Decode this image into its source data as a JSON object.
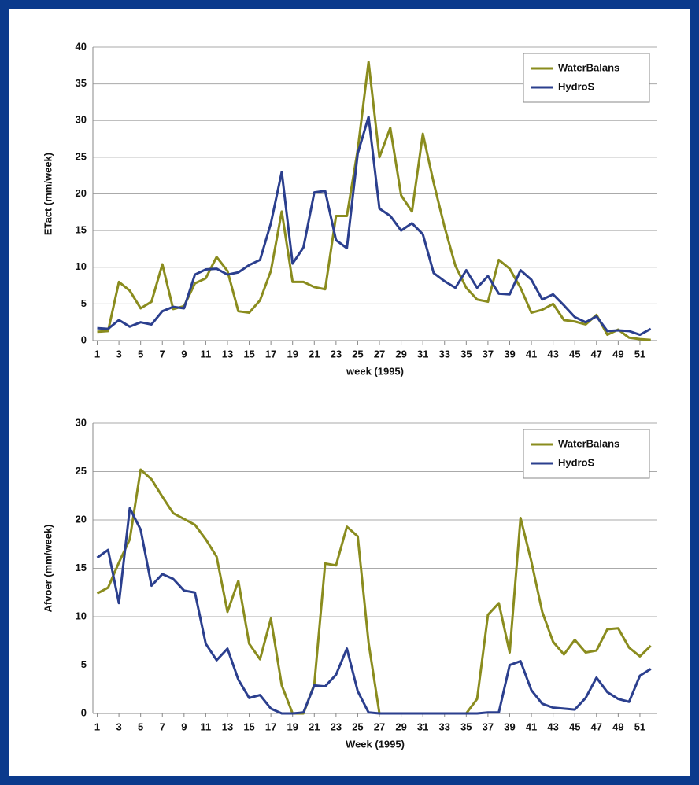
{
  "chart_data": [
    {
      "type": "line",
      "xlabel": "week (1995)",
      "ylabel": "ETact (mm/week)",
      "x": [
        1,
        2,
        3,
        4,
        5,
        6,
        7,
        8,
        9,
        10,
        11,
        12,
        13,
        14,
        15,
        16,
        17,
        18,
        19,
        20,
        21,
        22,
        23,
        24,
        25,
        26,
        27,
        28,
        29,
        30,
        31,
        32,
        33,
        34,
        35,
        36,
        37,
        38,
        39,
        40,
        41,
        42,
        43,
        44,
        45,
        46,
        47,
        48,
        49,
        50,
        51,
        52
      ],
      "xlim": [
        0.6,
        52.6
      ],
      "xticks": [
        1,
        3,
        5,
        7,
        9,
        11,
        13,
        15,
        17,
        19,
        21,
        23,
        25,
        27,
        29,
        31,
        33,
        35,
        37,
        39,
        41,
        43,
        45,
        47,
        49,
        51
      ],
      "ylim": [
        0,
        40
      ],
      "yticks": [
        0,
        5,
        10,
        15,
        20,
        25,
        30,
        35,
        40
      ],
      "grid": true,
      "legend": "upper right",
      "series": [
        {
          "name": "WaterBalans",
          "color": "#8a8c1e",
          "values": [
            1.2,
            1.3,
            8,
            6.8,
            4.4,
            5.3,
            10.4,
            4.3,
            4.7,
            7.8,
            8.5,
            11.4,
            9.5,
            4,
            3.8,
            5.5,
            9.5,
            17.6,
            8,
            8,
            7.3,
            7,
            17,
            17,
            26,
            38,
            25,
            29,
            19.8,
            17.6,
            28.2,
            21.5,
            15.5,
            10.2,
            7.2,
            5.6,
            5.3,
            11,
            9.8,
            7.2,
            3.8,
            4.2,
            5,
            2.8,
            2.6,
            2.2,
            3.5,
            0.8,
            1.5,
            0.4,
            0.2,
            0.1
          ]
        },
        {
          "name": "HydroS",
          "color": "#2b3f8e",
          "values": [
            1.7,
            1.6,
            2.8,
            1.9,
            2.5,
            2.2,
            4,
            4.6,
            4.4,
            9,
            9.7,
            9.8,
            9,
            9.3,
            10.3,
            11,
            16,
            23,
            10.5,
            12.7,
            20.2,
            20.4,
            13.7,
            12.6,
            25.5,
            30.5,
            18,
            17,
            15,
            16,
            14.5,
            9.2,
            8.1,
            7.2,
            9.6,
            7.2,
            8.8,
            6.4,
            6.3,
            9.6,
            8.3,
            5.6,
            6.3,
            4.8,
            3.2,
            2.5,
            3.3,
            1.3,
            1.4,
            1.3,
            0.8,
            1.6
          ]
        }
      ]
    },
    {
      "type": "line",
      "xlabel": "Week (1995)",
      "ylabel": "Afvoer (mm/week)",
      "x": [
        1,
        2,
        3,
        4,
        5,
        6,
        7,
        8,
        9,
        10,
        11,
        12,
        13,
        14,
        15,
        16,
        17,
        18,
        19,
        20,
        21,
        22,
        23,
        24,
        25,
        26,
        27,
        28,
        29,
        30,
        31,
        32,
        33,
        34,
        35,
        36,
        37,
        38,
        39,
        40,
        41,
        42,
        43,
        44,
        45,
        46,
        47,
        48,
        49,
        50,
        51,
        52
      ],
      "xlim": [
        0.6,
        52.6
      ],
      "xticks": [
        1,
        3,
        5,
        7,
        9,
        11,
        13,
        15,
        17,
        19,
        21,
        23,
        25,
        27,
        29,
        31,
        33,
        35,
        37,
        39,
        41,
        43,
        45,
        47,
        49,
        51
      ],
      "ylim": [
        0,
        30
      ],
      "yticks": [
        0,
        5,
        10,
        15,
        20,
        25,
        30
      ],
      "grid": true,
      "legend": "upper right",
      "series": [
        {
          "name": "WaterBalans",
          "color": "#8a8c1e",
          "values": [
            12.4,
            13,
            15.6,
            18,
            25.2,
            24.2,
            22.4,
            20.7,
            20.1,
            19.5,
            18,
            16.2,
            10.5,
            13.7,
            7.2,
            5.6,
            9.8,
            2.9,
            0,
            0,
            3,
            15.5,
            15.3,
            19.3,
            18.3,
            7.3,
            0,
            0,
            0,
            0,
            0,
            0,
            0,
            0,
            0,
            1.5,
            10.2,
            11.4,
            6.3,
            20.2,
            15.7,
            10.5,
            7.4,
            6.1,
            7.6,
            6.3,
            6.5,
            8.7,
            8.8,
            6.8,
            5.9,
            7
          ]
        },
        {
          "name": "HydroS",
          "color": "#2b3f8e",
          "values": [
            16.1,
            16.9,
            11.4,
            21.2,
            19,
            13.2,
            14.4,
            13.9,
            12.7,
            12.5,
            7.2,
            5.5,
            6.7,
            3.5,
            1.6,
            1.9,
            0.5,
            0,
            0,
            0.1,
            2.9,
            2.8,
            4,
            6.7,
            2.3,
            0.1,
            0,
            0,
            0,
            0,
            0,
            0,
            0,
            0,
            0,
            0,
            0.1,
            0.1,
            5,
            5.4,
            2.4,
            1,
            0.6,
            0.5,
            0.4,
            1.6,
            3.7,
            2.2,
            1.5,
            1.2,
            3.9,
            4.6
          ]
        }
      ]
    }
  ]
}
